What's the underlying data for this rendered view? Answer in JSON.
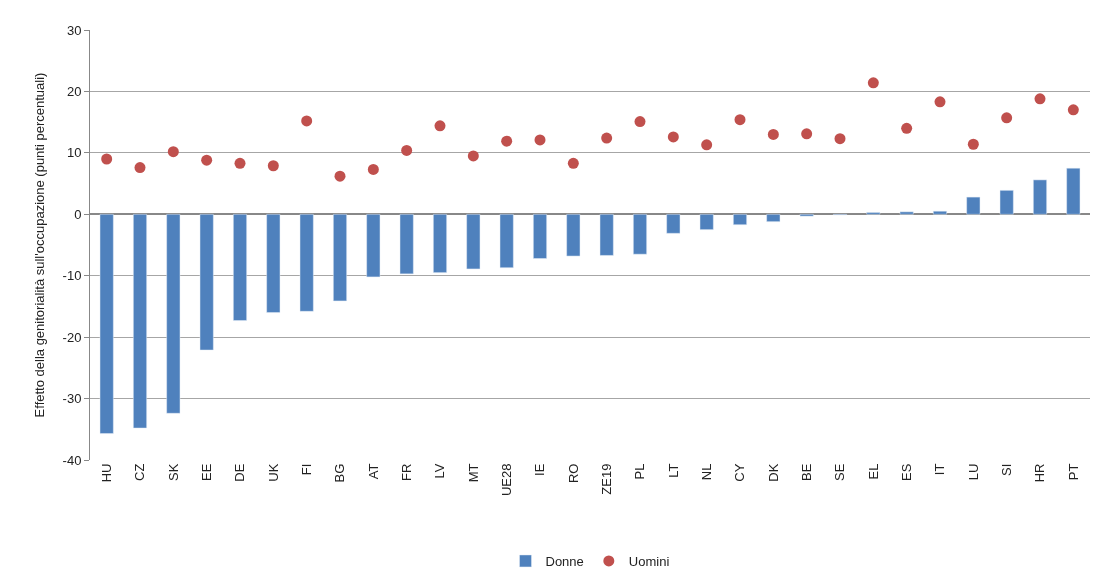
{
  "chart_data": {
    "type": "bar",
    "ylabel": "Effetto della genitorialità sull'occupazione (punti percentuali)",
    "categories": [
      "HU",
      "CZ",
      "SK",
      "EE",
      "DE",
      "UK",
      "FI",
      "BG",
      "AT",
      "FR",
      "LV",
      "MT",
      "UE28",
      "IE",
      "RO",
      "ZE19",
      "PL",
      "LT",
      "NL",
      "CY",
      "DK",
      "BE",
      "SE",
      "EL",
      "ES",
      "IT",
      "LU",
      "SI",
      "HR",
      "PT"
    ],
    "series": [
      {
        "name": "Donne",
        "color": "#4f81bd",
        "values": [
          -35.7,
          -34.8,
          -32.4,
          -22.1,
          -17.3,
          -16.0,
          -15.8,
          -14.1,
          -10.2,
          -9.7,
          -9.5,
          -8.9,
          -8.7,
          -7.2,
          -6.8,
          -6.7,
          -6.5,
          -3.1,
          -2.5,
          -1.7,
          -1.2,
          -0.3,
          -0.1,
          0.3,
          0.4,
          0.5,
          2.8,
          3.9,
          5.6,
          7.5
        ]
      },
      {
        "name": "Uomini",
        "type": "scatter",
        "marker": "circle",
        "color": "#c0504d",
        "values": [
          9.0,
          7.6,
          10.2,
          8.8,
          8.3,
          7.9,
          15.2,
          6.2,
          7.3,
          10.4,
          14.4,
          9.5,
          11.9,
          12.1,
          8.3,
          12.4,
          15.1,
          12.6,
          11.3,
          15.4,
          13.0,
          13.1,
          12.3,
          21.4,
          14.0,
          18.3,
          11.4,
          15.7,
          18.8,
          17.0
        ]
      }
    ],
    "ylim": [
      -40,
      30
    ],
    "yticks": [
      -40,
      -30,
      -20,
      -10,
      0,
      10,
      20,
      30
    ],
    "grid": "y",
    "legend": "bottom"
  }
}
